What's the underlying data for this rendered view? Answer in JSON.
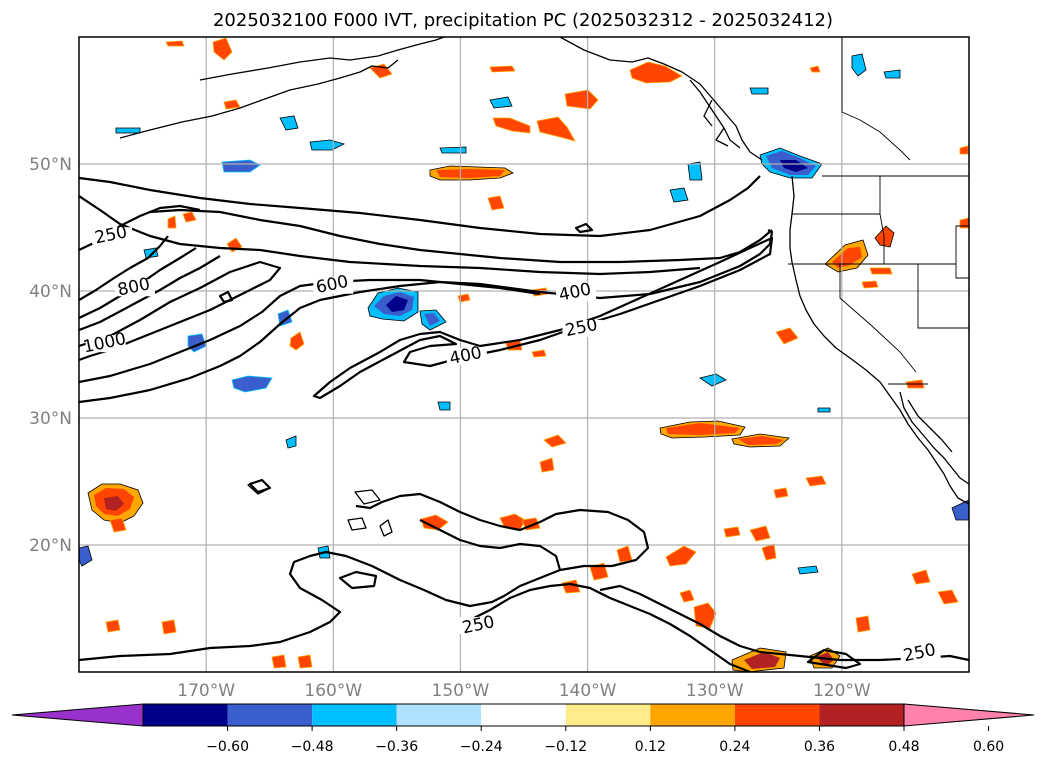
{
  "title": "2025032100 F000 IVT, precipitation PC (2025032312 - 2025032412)",
  "map": {
    "lon_range": [
      -180,
      -110
    ],
    "lat_range": [
      10,
      60
    ],
    "lat_ticks": [
      {
        "value": 50,
        "label": "50°N"
      },
      {
        "value": 40,
        "label": "40°N"
      },
      {
        "value": 30,
        "label": "30°N"
      },
      {
        "value": 20,
        "label": "20°N"
      }
    ],
    "lon_ticks": [
      {
        "value": -170,
        "label": "170°W"
      },
      {
        "value": -160,
        "label": "160°W"
      },
      {
        "value": -150,
        "label": "150°W"
      },
      {
        "value": -140,
        "label": "140°W"
      },
      {
        "value": -130,
        "label": "130°W"
      },
      {
        "value": -120,
        "label": "120°W"
      }
    ],
    "ivt_contour_labels": [
      {
        "text": "250",
        "lon": -177.4,
        "lat": 44.0
      },
      {
        "text": "800",
        "lon": -175.6,
        "lat": 39.9
      },
      {
        "text": "1000",
        "lon": -177.9,
        "lat": 35.5
      },
      {
        "text": "600",
        "lon": -160.0,
        "lat": 40.1
      },
      {
        "text": "400",
        "lon": -140.9,
        "lat": 39.5
      },
      {
        "text": "250",
        "lon": -140.4,
        "lat": 36.7
      },
      {
        "text": "400",
        "lon": -149.5,
        "lat": 34.5
      },
      {
        "text": "250",
        "lon": -148.5,
        "lat": 13.3
      },
      {
        "text": "250",
        "lon": -113.8,
        "lat": 11.1
      }
    ]
  },
  "colorbar": {
    "levels": [
      "−0.60",
      "−0.48",
      "−0.36",
      "−0.24",
      "−0.12",
      "0.12",
      "0.24",
      "0.36",
      "0.48",
      "0.60"
    ],
    "colors": [
      "#9932cc",
      "#00008b",
      "#3a5fcd",
      "#00bfff",
      "#b0e2ff",
      "#ffffff",
      "#ffec8b",
      "#ffa500",
      "#ff4500",
      "#b22222",
      "#ff82ab"
    ],
    "extend": "both"
  },
  "chart_data": {
    "type": "heatmap",
    "title": "2025032100 F000 IVT, precipitation PC (2025032312 - 2025032412)",
    "fields": {
      "contours": "IVT",
      "shaded": "precipitation PC"
    },
    "ivt_contour_levels": [
      250,
      400,
      600,
      800,
      1000
    ],
    "precip_pc_levels": [
      -0.6,
      -0.48,
      -0.36,
      -0.24,
      -0.12,
      0.12,
      0.24,
      0.36,
      0.48,
      0.6
    ],
    "xlim": [
      -180,
      -110
    ],
    "ylim": [
      10,
      60
    ],
    "xticks": [
      -170,
      -160,
      -150,
      -140,
      -130,
      -120
    ],
    "yticks": [
      20,
      30,
      40,
      50
    ],
    "grid": true,
    "colorbar_orientation": "horizontal-bottom"
  }
}
